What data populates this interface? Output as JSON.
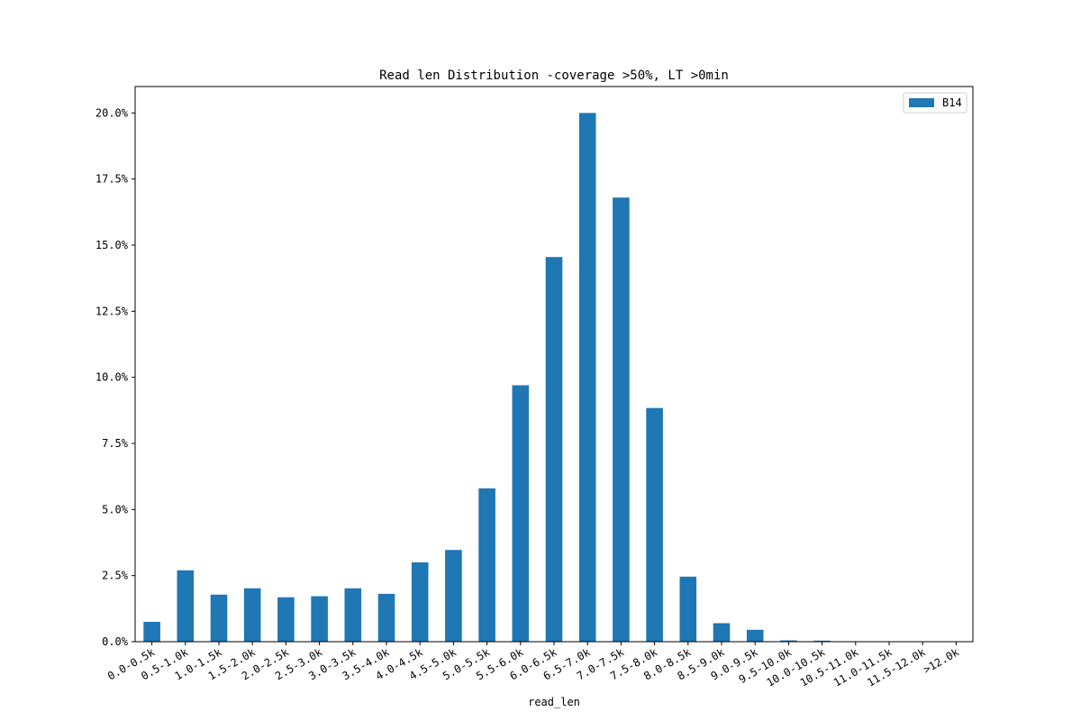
{
  "chart_data": {
    "type": "bar",
    "title": "Read len Distribution -coverage >50%, LT >0min",
    "xlabel": "read_len",
    "ylabel": "",
    "categories": [
      "0.0-0.5k",
      "0.5-1.0k",
      "1.0-1.5k",
      "1.5-2.0k",
      "2.0-2.5k",
      "2.5-3.0k",
      "3.0-3.5k",
      "3.5-4.0k",
      "4.0-4.5k",
      "4.5-5.0k",
      "5.0-5.5k",
      "5.5-6.0k",
      "6.0-6.5k",
      "6.5-7.0k",
      "7.0-7.5k",
      "7.5-8.0k",
      "8.0-8.5k",
      "8.5-9.0k",
      "9.0-9.5k",
      "9.5-10.0k",
      "10.0-10.5k",
      "10.5-11.0k",
      "11.0-11.5k",
      "11.5-12.0k",
      ">12.0k"
    ],
    "series": [
      {
        "name": "B14",
        "color": "#1f77b4",
        "values": [
          0.75,
          2.7,
          1.78,
          2.02,
          1.68,
          1.72,
          2.02,
          1.81,
          3.0,
          3.47,
          5.8,
          9.7,
          14.55,
          20.0,
          16.8,
          8.84,
          2.46,
          0.7,
          0.45,
          0.05,
          0.04,
          0.0,
          0.0,
          0.0,
          0.0
        ]
      }
    ],
    "ylim": [
      0,
      21.0
    ],
    "yticks": [
      0,
      2.5,
      5.0,
      7.5,
      10.0,
      12.5,
      15.0,
      17.5,
      20.0
    ],
    "ytick_labels": [
      "0.0%",
      "2.5%",
      "5.0%",
      "7.5%",
      "10.0%",
      "12.5%",
      "15.0%",
      "17.5%",
      "20.0%"
    ],
    "legend": "top-right",
    "grid": false
  }
}
